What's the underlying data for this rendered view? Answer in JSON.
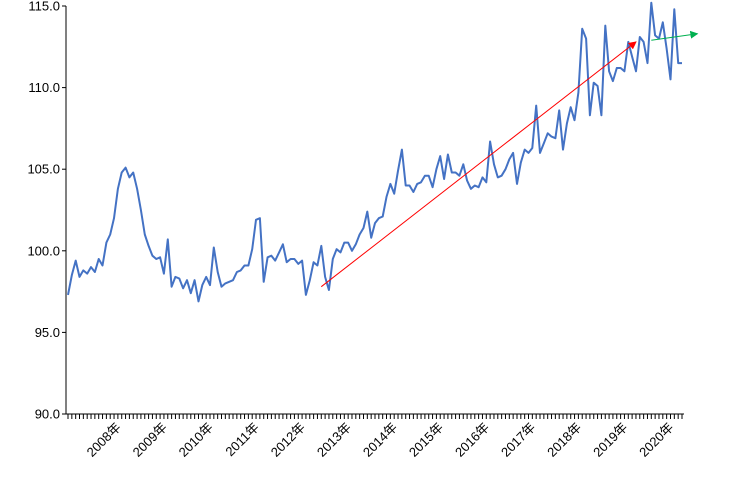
{
  "chart_data": {
    "type": "line",
    "title": "",
    "xlabel": "",
    "ylabel": "",
    "ylim": [
      90.0,
      115.0
    ],
    "y_ticks": [
      "90.0",
      "95.0",
      "100.0",
      "105.0",
      "110.0",
      "115.0"
    ],
    "x_tick_labels": [
      "2008年",
      "2009年",
      "2010年",
      "2011年",
      "2012年",
      "2013年",
      "2014年",
      "2015年",
      "2016年",
      "2017年",
      "2018年",
      "2019年",
      "2020年"
    ],
    "grid": false,
    "legend": "none",
    "series": [
      {
        "color": "#4472C4",
        "start": "2007-04",
        "frequency": "monthly",
        "values": [
          97.3,
          98.5,
          99.4,
          98.4,
          98.8,
          98.6,
          99.0,
          98.7,
          99.5,
          99.1,
          100.5,
          101.0,
          102.0,
          103.8,
          104.8,
          105.1,
          104.5,
          104.8,
          103.8,
          102.5,
          101.0,
          100.3,
          99.7,
          99.5,
          99.6,
          98.6,
          100.7,
          97.8,
          98.4,
          98.3,
          97.7,
          98.2,
          97.4,
          98.2,
          96.9,
          97.9,
          98.4,
          97.9,
          100.2,
          98.7,
          97.8,
          98.0,
          98.1,
          98.2,
          98.7,
          98.8,
          99.1,
          99.1,
          100.1,
          101.9,
          102.0,
          98.1,
          99.6,
          99.7,
          99.4,
          99.9,
          100.4,
          99.3,
          99.5,
          99.5,
          99.2,
          99.4,
          97.3,
          98.2,
          99.3,
          99.1,
          100.3,
          98.4,
          97.6,
          99.5,
          100.1,
          99.9,
          100.5,
          100.5,
          100.0,
          100.4,
          101.0,
          101.4,
          102.4,
          100.8,
          101.7,
          102.0,
          102.1,
          103.3,
          104.1,
          103.5,
          104.9,
          106.2,
          104.0,
          104.0,
          103.6,
          104.1,
          104.2,
          104.6,
          104.6,
          103.9,
          105.0,
          105.8,
          104.4,
          105.9,
          104.8,
          104.8,
          104.6,
          105.3,
          104.3,
          103.8,
          104.0,
          103.9,
          104.5,
          104.2,
          106.7,
          105.3,
          104.5,
          104.6,
          105.0,
          105.6,
          106.0,
          104.1,
          105.4,
          106.2,
          106.0,
          106.3,
          108.9,
          106.0,
          106.6,
          107.2,
          107.0,
          106.9,
          108.6,
          106.2,
          107.8,
          108.8,
          108.0,
          109.7,
          113.6,
          113.0,
          108.3,
          110.3,
          110.1,
          108.3,
          113.8,
          111.0,
          110.4,
          111.2,
          111.2,
          111.0,
          112.8,
          111.9,
          111.0,
          113.1,
          112.8,
          111.5,
          115.2,
          113.2,
          113.0,
          114.0,
          112.4,
          110.5,
          114.8,
          111.5,
          111.5
        ]
      }
    ],
    "annotations": [
      {
        "type": "arrow",
        "color": "#FF0000",
        "from": {
          "x": "2012-10",
          "y": 97.8
        },
        "to": {
          "x": "2019-08",
          "y": 112.8
        }
      },
      {
        "type": "arrow",
        "color": "#00B050",
        "from": {
          "x": "2019-12",
          "y": 112.9
        },
        "to": {
          "x": "2020-12",
          "y": 113.3
        }
      }
    ]
  }
}
